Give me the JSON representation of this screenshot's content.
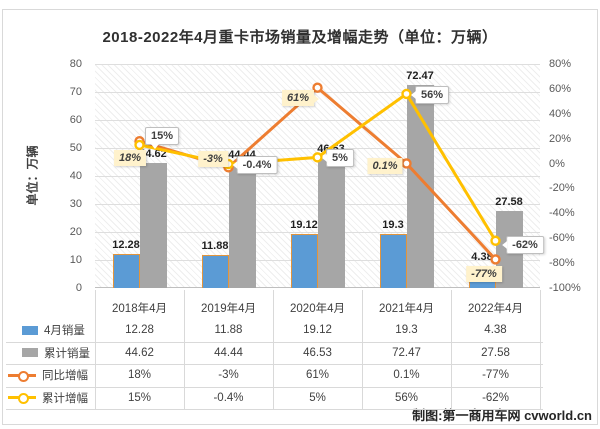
{
  "title": "2018-2022年4月重卡市场销量及增幅走势（单位：万辆）",
  "footer": "制图:第一商用车网 cvworld.cn",
  "chart_data": {
    "type": "combo-bar-line",
    "categories": [
      "2018年4月",
      "2019年4月",
      "2020年4月",
      "2021年4月",
      "2022年4月"
    ],
    "series": [
      {
        "name": "4月销量",
        "type": "bar",
        "axis": "left",
        "values": [
          12.28,
          11.88,
          19.12,
          19.3,
          4.38
        ],
        "labels": [
          "12.28",
          "11.88",
          "19.12",
          "19.3",
          "4.38"
        ],
        "color": "#5B9BD5"
      },
      {
        "name": "累计销量",
        "type": "bar",
        "axis": "left",
        "values": [
          44.62,
          44.44,
          46.53,
          72.47,
          27.58
        ],
        "labels": [
          "44.62",
          "44.44",
          "46.53",
          "72.47",
          "27.58"
        ],
        "color": "#A6A6A6"
      },
      {
        "name": "同比增幅",
        "type": "line",
        "axis": "right",
        "values": [
          18,
          -3,
          61,
          0.1,
          -77
        ],
        "labels": [
          "18%",
          "-3%",
          "61%",
          "0.1%",
          "-77%"
        ],
        "color": "#ED7D31",
        "label_style": "cream"
      },
      {
        "name": "累计增幅",
        "type": "line",
        "axis": "right",
        "values": [
          15,
          -0.4,
          5,
          56,
          -62
        ],
        "labels": [
          "15%",
          "-0.4%",
          "5%",
          "56%",
          "-62%"
        ],
        "color": "#FFC000",
        "label_style": "callout"
      }
    ],
    "left_axis": {
      "title": "单位：万辆",
      "ticks": [
        "0",
        "10",
        "20",
        "30",
        "40",
        "50",
        "60",
        "70",
        "80"
      ],
      "min": 0,
      "max": 80
    },
    "right_axis": {
      "ticks": [
        "80%",
        "60%",
        "40%",
        "20%",
        "0%",
        "-20%",
        "-40%",
        "-60%",
        "-80%",
        "-100%"
      ],
      "min": -100,
      "max": 80
    },
    "grid": true,
    "legend_position": "data-table-left"
  },
  "colors": {
    "bar_blue": "#5B9BD5",
    "bar_blue_border": "#E2953D",
    "bar_gray": "#A6A6A6",
    "line_orange": "#ED7D31",
    "line_yellow": "#FFC000",
    "label_cream_bg": "#FFF2CC",
    "grid": "#DEDEDE",
    "axis_text": "#595959",
    "text_dark": "#404040"
  }
}
